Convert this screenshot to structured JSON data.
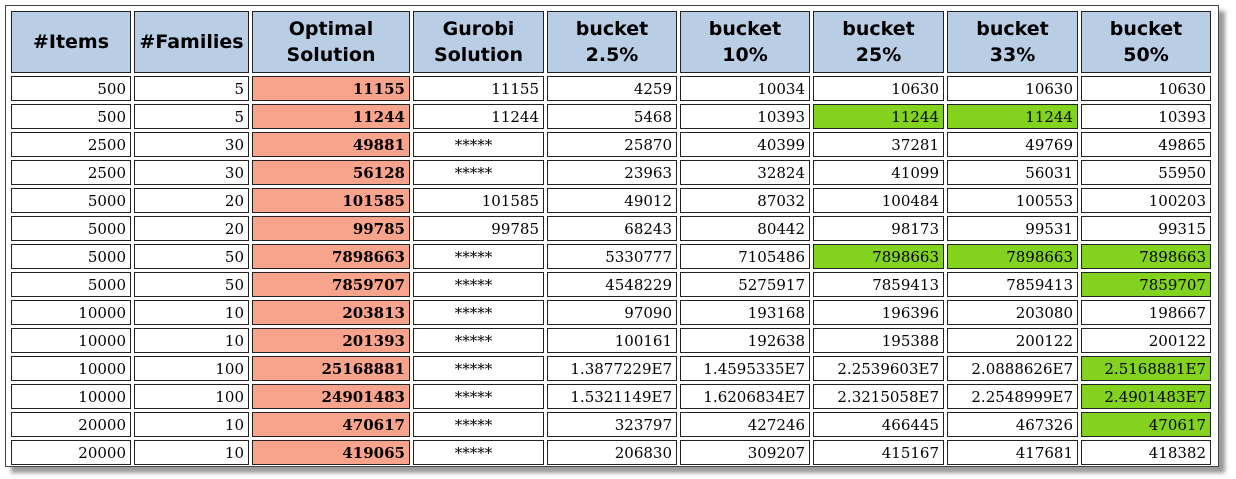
{
  "headers": [
    "#Items",
    "#Families",
    "Optimal Solution",
    "Gurobi Solution",
    "bucket 2.5%",
    "bucket 10%",
    "bucket 25%",
    "bucket 33%",
    "bucket 50%"
  ],
  "colors": {
    "header_bg": "#b9cde5",
    "optimal_bg": "#f8a48c",
    "highlight_bg": "#82d21e"
  },
  "rows": [
    [
      "500",
      "5",
      "11155",
      "11155",
      "4259",
      "10034",
      "10630",
      "10630",
      "10630"
    ],
    [
      "500",
      "5",
      "11244",
      "11244",
      "5468",
      "10393",
      "11244",
      "11244",
      "10393"
    ],
    [
      "2500",
      "30",
      "49881",
      "*****",
      "25870",
      "40399",
      "37281",
      "49769",
      "49865"
    ],
    [
      "2500",
      "30",
      "56128",
      "*****",
      "23963",
      "32824",
      "41099",
      "56031",
      "55950"
    ],
    [
      "5000",
      "20",
      "101585",
      "101585",
      "49012",
      "87032",
      "100484",
      "100553",
      "100203"
    ],
    [
      "5000",
      "20",
      "99785",
      "99785",
      "68243",
      "80442",
      "98173",
      "99531",
      "99315"
    ],
    [
      "5000",
      "50",
      "7898663",
      "*****",
      "5330777",
      "7105486",
      "7898663",
      "7898663",
      "7898663"
    ],
    [
      "5000",
      "50",
      "7859707",
      "*****",
      "4548229",
      "5275917",
      "7859413",
      "7859413",
      "7859707"
    ],
    [
      "10000",
      "10",
      "203813",
      "*****",
      "97090",
      "193168",
      "196396",
      "203080",
      "198667"
    ],
    [
      "10000",
      "10",
      "201393",
      "*****",
      "100161",
      "192638",
      "195388",
      "200122",
      "200122"
    ],
    [
      "10000",
      "100",
      "25168881",
      "*****",
      "1.3877229E7",
      "1.4595335E7",
      "2.2539603E7",
      "2.0888626E7",
      "2.5168881E7"
    ],
    [
      "10000",
      "100",
      "24901483",
      "*****",
      "1.5321149E7",
      "1.6206834E7",
      "2.3215058E7",
      "2.2548999E7",
      "2.4901483E7"
    ],
    [
      "20000",
      "10",
      "470617",
      "*****",
      "323797",
      "427246",
      "466445",
      "467326",
      "470617"
    ],
    [
      "20000",
      "10",
      "419065",
      "*****",
      "206830",
      "309207",
      "415167",
      "417681",
      "418382"
    ]
  ],
  "highlighted_cells": [
    [
      1,
      6
    ],
    [
      1,
      7
    ],
    [
      6,
      6
    ],
    [
      6,
      7
    ],
    [
      6,
      8
    ],
    [
      7,
      8
    ],
    [
      10,
      8
    ],
    [
      11,
      8
    ],
    [
      12,
      8
    ]
  ]
}
